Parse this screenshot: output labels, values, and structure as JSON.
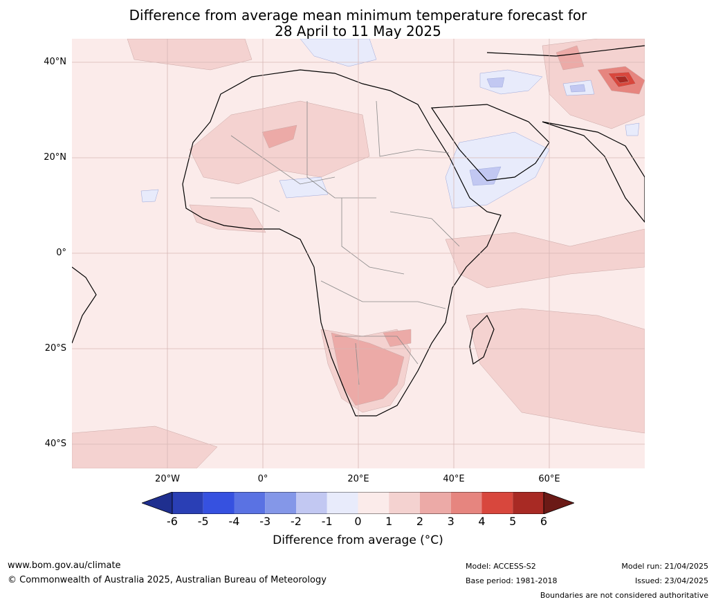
{
  "title_line1": "Difference from average mean minimum temperature forecast for",
  "title_line2": "28 April to 11 May 2025",
  "lat_labels": [
    "40°N",
    "20°N",
    "0°",
    "20°S",
    "40°S"
  ],
  "lon_labels": [
    "20°W",
    "0°",
    "20°E",
    "40°E",
    "60°E"
  ],
  "colorbar": {
    "ticks": [
      "-6",
      "-5",
      "-4",
      "-3",
      "-2",
      "-1",
      "0",
      "1",
      "2",
      "3",
      "4",
      "5",
      "6"
    ],
    "colors": [
      "#1f2f8f",
      "#2a3fb5",
      "#3651e0",
      "#5a72e3",
      "#8497e8",
      "#c2c8f2",
      "#e8ebfb",
      "#fbebea",
      "#f4d2d0",
      "#ecaaa7",
      "#e6857f",
      "#d8473d",
      "#a82a24",
      "#6b1a16"
    ],
    "label": "Difference from average (°C)"
  },
  "footer": {
    "url": "www.bom.gov.au/climate",
    "copyright": "© Commonwealth of Australia 2025, Australian Bureau of Meteorology",
    "model": "Model: ACCESS-S2",
    "base_period": "Base period: 1981-2018",
    "model_run": "Model run: 21/04/2025",
    "issued": "Issued: 23/04/2025",
    "boundaries": "Boundaries are not considered authoritative"
  }
}
